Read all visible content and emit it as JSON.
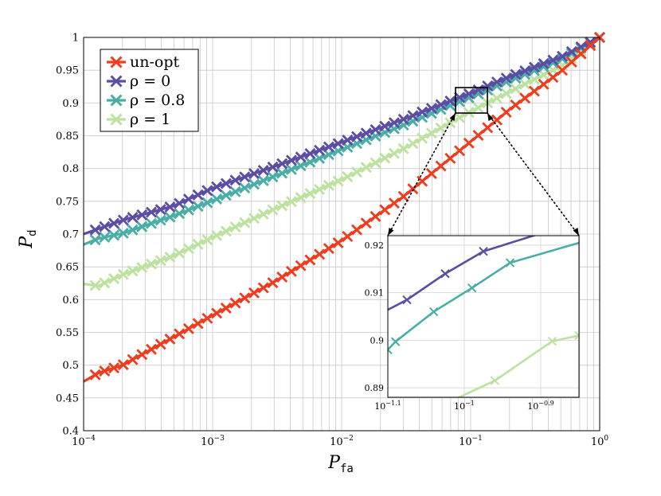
{
  "chart_data": {
    "type": "line",
    "xscale": "log",
    "xlim": [
      0.0001,
      1
    ],
    "ylim": [
      0.4,
      1
    ],
    "xlabel": {
      "base": "P",
      "sub": "fa"
    },
    "ylabel": {
      "base": "P",
      "sub": "d"
    },
    "y_ticks": [
      "0.4",
      "0.45",
      "0.5",
      "0.55",
      "0.6",
      "0.65",
      "0.7",
      "0.75",
      "0.8",
      "0.85",
      "0.9",
      "0.95",
      "1"
    ],
    "x_ticks": [
      {
        "base": "10",
        "exp": "−4"
      },
      {
        "base": "10",
        "exp": "−3"
      },
      {
        "base": "10",
        "exp": "−2"
      },
      {
        "base": "10",
        "exp": "−1"
      },
      {
        "base": "10",
        "exp": "0"
      }
    ],
    "grid": true,
    "legend_position": "top-left",
    "series": [
      {
        "name": "un-opt",
        "color": "#f03c1e",
        "x": [
          0.0001,
          0.00013,
          0.0002,
          0.0005,
          0.001,
          0.003,
          0.01,
          0.03,
          0.1,
          0.2,
          0.5,
          1
        ],
        "y": [
          0.475,
          0.488,
          0.5,
          0.543,
          0.576,
          0.627,
          0.69,
          0.757,
          0.841,
          0.89,
          0.948,
          1.0
        ]
      },
      {
        "name": "ρ = 0",
        "color": "#5c4da4",
        "x": [
          0.0001,
          0.00013,
          0.0002,
          0.0005,
          0.001,
          0.003,
          0.01,
          0.03,
          0.1,
          0.2,
          0.5,
          1
        ],
        "y": [
          0.7,
          0.708,
          0.721,
          0.743,
          0.77,
          0.803,
          0.84,
          0.875,
          0.915,
          0.94,
          0.97,
          1.0
        ]
      },
      {
        "name": "ρ = 0.8",
        "color": "#4aaea6",
        "x": [
          0.0001,
          0.00013,
          0.0002,
          0.0005,
          0.001,
          0.003,
          0.01,
          0.03,
          0.1,
          0.2,
          0.5,
          1
        ],
        "y": [
          0.684,
          0.693,
          0.701,
          0.728,
          0.751,
          0.788,
          0.829,
          0.866,
          0.909,
          0.934,
          0.966,
          1.0
        ]
      },
      {
        "name": "ρ = 1",
        "color": "#bde2a0",
        "x": [
          0.0001,
          0.00013,
          0.0002,
          0.0005,
          0.001,
          0.003,
          0.01,
          0.03,
          0.1,
          0.2,
          0.5,
          1
        ],
        "y": [
          0.624,
          0.621,
          0.638,
          0.667,
          0.695,
          0.738,
          0.783,
          0.83,
          0.887,
          0.917,
          0.956,
          1.0
        ]
      }
    ],
    "inset": {
      "xlim_log10": [
        -1.1,
        -0.85
      ],
      "ylim": [
        0.888,
        0.922
      ],
      "y_ticks": [
        "0.89",
        "0.9",
        "0.91",
        "0.92"
      ],
      "x_ticks": [
        {
          "base": "10",
          "exp": "−1.1"
        },
        {
          "base": "10",
          "exp": "−1"
        },
        {
          "base": "10",
          "exp": "−0.9"
        }
      ],
      "series": [
        {
          "name": "ρ = 0",
          "log10x": [
            -1.1,
            -1.075,
            -1.025,
            -0.975,
            -0.85
          ],
          "y": [
            0.9064,
            0.9085,
            0.914,
            0.9187,
            0.925
          ]
        },
        {
          "name": "ρ = 0.8",
          "log10x": [
            -1.1,
            -1.09,
            -1.04,
            -0.99,
            -0.94,
            -0.85
          ],
          "y": [
            0.898,
            0.8997,
            0.906,
            0.911,
            0.9163,
            0.9205
          ]
        },
        {
          "name": "ρ = 1",
          "log10x": [
            -1.02,
            -0.96,
            -0.885,
            -0.85
          ],
          "y": [
            0.887,
            0.8915,
            0.8998,
            0.901
          ]
        }
      ]
    }
  }
}
